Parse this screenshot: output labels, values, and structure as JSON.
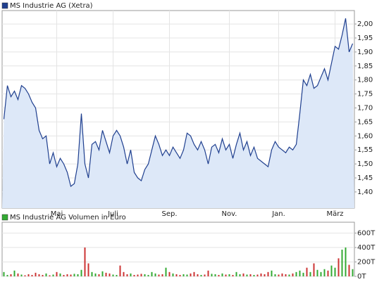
{
  "chart_data": [
    {
      "type": "area",
      "categories": [
        null,
        null,
        null,
        null,
        null,
        null,
        null,
        null,
        null,
        null,
        null,
        null,
        null,
        null,
        null,
        "Mai",
        null,
        null,
        null,
        null,
        null,
        null,
        null,
        null,
        null,
        null,
        null,
        null,
        null,
        null,
        null,
        "Juli",
        null,
        null,
        null,
        null,
        null,
        null,
        null,
        null,
        null,
        null,
        null,
        null,
        null,
        null,
        null,
        "Sep.",
        null,
        null,
        null,
        null,
        null,
        null,
        null,
        null,
        null,
        null,
        null,
        null,
        null,
        null,
        null,
        null,
        "Nov.",
        null,
        null,
        null,
        null,
        null,
        null,
        null,
        null,
        null,
        null,
        null,
        null,
        null,
        "Jan.",
        null,
        null,
        null,
        null,
        null,
        null,
        null,
        null,
        null,
        null,
        null,
        null,
        null,
        null,
        null,
        "März",
        null,
        null,
        null,
        null,
        null
      ],
      "series": [
        {
          "name": "MS Industrie AG (Xetra)",
          "color": "#1f3f8f",
          "fill": "#dde8f8",
          "values": [
            1.66,
            1.78,
            1.74,
            1.76,
            1.73,
            1.78,
            1.77,
            1.75,
            1.72,
            1.7,
            1.62,
            1.59,
            1.6,
            1.5,
            1.54,
            1.49,
            1.52,
            1.5,
            1.47,
            1.42,
            1.43,
            1.5,
            1.68,
            1.5,
            1.45,
            1.57,
            1.58,
            1.55,
            1.62,
            1.58,
            1.54,
            1.6,
            1.62,
            1.6,
            1.56,
            1.5,
            1.55,
            1.47,
            1.45,
            1.44,
            1.48,
            1.5,
            1.55,
            1.6,
            1.57,
            1.53,
            1.55,
            1.53,
            1.56,
            1.54,
            1.52,
            1.55,
            1.61,
            1.6,
            1.57,
            1.55,
            1.58,
            1.55,
            1.5,
            1.56,
            1.57,
            1.54,
            1.59,
            1.55,
            1.57,
            1.52,
            1.57,
            1.61,
            1.55,
            1.58,
            1.53,
            1.56,
            1.52,
            1.51,
            1.5,
            1.49,
            1.55,
            1.58,
            1.56,
            1.55,
            1.54,
            1.56,
            1.55,
            1.57,
            1.68,
            1.8,
            1.78,
            1.82,
            1.77,
            1.78,
            1.81,
            1.84,
            1.8,
            1.86,
            1.92,
            1.91,
            1.96,
            2.02,
            1.9,
            1.93
          ]
        }
      ],
      "ylim": [
        1.342,
        2.048
      ],
      "yticks": [
        {
          "value": 1.4,
          "label": "1,40"
        },
        {
          "value": 1.45,
          "label": "1,45"
        },
        {
          "value": 1.5,
          "label": "1,50"
        },
        {
          "value": 1.55,
          "label": "1,55"
        },
        {
          "value": 1.6,
          "label": "1,60"
        },
        {
          "value": 1.65,
          "label": "1,65"
        },
        {
          "value": 1.7,
          "label": "1,70"
        },
        {
          "value": 1.75,
          "label": "1,75"
        },
        {
          "value": 1.8,
          "label": "1,80"
        },
        {
          "value": 1.85,
          "label": "1,85"
        },
        {
          "value": 1.9,
          "label": "1,90"
        },
        {
          "value": 1.95,
          "label": "1,95"
        },
        {
          "value": 2.0,
          "label": "2,00"
        }
      ],
      "grid": true
    },
    {
      "type": "bar",
      "series": [
        {
          "name": "MS Industrie AG Volumen in Euro",
          "color": "#33aa33",
          "down_color": "#cc3333",
          "values": [
            60,
            20,
            30,
            80,
            40,
            25,
            15,
            30,
            20,
            50,
            30,
            20,
            40,
            15,
            25,
            60,
            40,
            20,
            30,
            25,
            35,
            30,
            90,
            400,
            180,
            60,
            40,
            30,
            70,
            50,
            40,
            25,
            20,
            150,
            60,
            30,
            40,
            20,
            25,
            35,
            30,
            20,
            60,
            40,
            25,
            30,
            120,
            60,
            40,
            30,
            20,
            30,
            25,
            40,
            60,
            30,
            20,
            25,
            80,
            35,
            30,
            20,
            40,
            25,
            30,
            20,
            60,
            30,
            40,
            25,
            30,
            20,
            25,
            40,
            30,
            60,
            80,
            30,
            25,
            40,
            30,
            25,
            40,
            60,
            80,
            50,
            120,
            60,
            180,
            90,
            60,
            100,
            80,
            150,
            120,
            250,
            370,
            400,
            160,
            100
          ]
        }
      ],
      "ylim": [
        0,
        750
      ],
      "yticks": [
        {
          "value": 0,
          "label": "0T"
        },
        {
          "value": 200,
          "label": "200T"
        },
        {
          "value": 400,
          "label": "400T"
        },
        {
          "value": 600,
          "label": "600T"
        }
      ],
      "grid": true
    }
  ]
}
